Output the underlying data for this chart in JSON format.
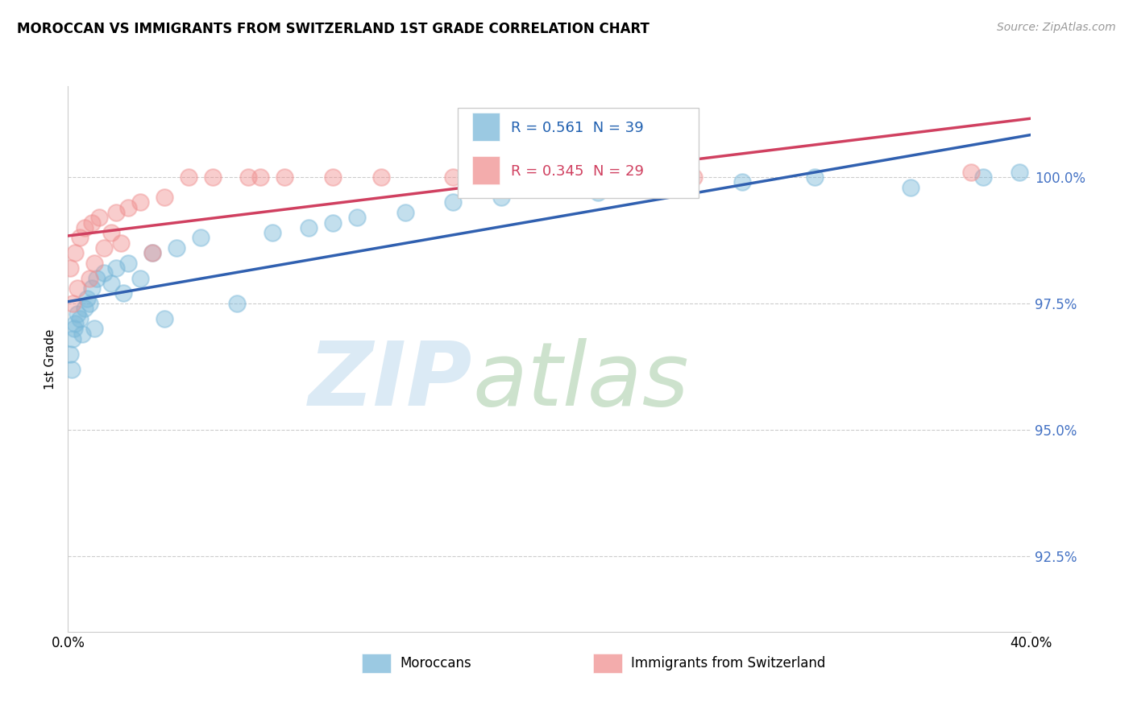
{
  "title": "MOROCCAN VS IMMIGRANTS FROM SWITZERLAND 1ST GRADE CORRELATION CHART",
  "source": "Source: ZipAtlas.com",
  "ylabel": "1st Grade",
  "legend_blue_label": "Moroccans",
  "legend_pink_label": "Immigrants from Switzerland",
  "R_blue": 0.561,
  "N_blue": 39,
  "R_pink": 0.345,
  "N_pink": 29,
  "blue_color": "#7ab8d9",
  "pink_color": "#f09090",
  "blue_line_color": "#3060b0",
  "pink_line_color": "#d04060",
  "xlim": [
    0.0,
    40.0
  ],
  "ylim": [
    91.0,
    101.8
  ],
  "yticks": [
    92.5,
    95.0,
    97.5,
    100.0
  ],
  "ytick_labels": [
    "92.5%",
    "95.0%",
    "97.5%",
    "100.0%"
  ],
  "grid_color": "#cccccc",
  "blue_x": [
    0.1,
    0.15,
    0.2,
    0.25,
    0.3,
    0.4,
    0.5,
    0.6,
    0.7,
    0.8,
    0.9,
    1.0,
    1.1,
    1.2,
    1.5,
    1.8,
    2.0,
    2.3,
    2.5,
    3.0,
    3.5,
    4.0,
    4.5,
    5.5,
    7.0,
    8.5,
    10.0,
    11.0,
    12.0,
    14.0,
    16.0,
    18.0,
    22.0,
    24.0,
    28.0,
    31.0,
    35.0,
    38.0,
    39.5
  ],
  "blue_y": [
    96.5,
    96.2,
    96.8,
    97.0,
    97.1,
    97.3,
    97.2,
    96.9,
    97.4,
    97.6,
    97.5,
    97.8,
    97.0,
    98.0,
    98.1,
    97.9,
    98.2,
    97.7,
    98.3,
    98.0,
    98.5,
    97.2,
    98.6,
    98.8,
    97.5,
    98.9,
    99.0,
    99.1,
    99.2,
    99.3,
    99.5,
    99.6,
    99.7,
    99.8,
    99.9,
    100.0,
    99.8,
    100.0,
    100.1
  ],
  "pink_x": [
    0.1,
    0.2,
    0.3,
    0.4,
    0.5,
    0.7,
    0.9,
    1.0,
    1.1,
    1.3,
    1.5,
    1.8,
    2.0,
    2.2,
    2.5,
    3.0,
    3.5,
    4.0,
    5.0,
    6.0,
    7.5,
    8.0,
    9.0,
    11.0,
    13.0,
    16.0,
    20.0,
    26.0,
    37.5
  ],
  "pink_y": [
    98.2,
    97.5,
    98.5,
    97.8,
    98.8,
    99.0,
    98.0,
    99.1,
    98.3,
    99.2,
    98.6,
    98.9,
    99.3,
    98.7,
    99.4,
    99.5,
    98.5,
    99.6,
    100.0,
    100.0,
    100.0,
    100.0,
    100.0,
    100.0,
    100.0,
    100.0,
    100.1,
    100.0,
    100.1
  ]
}
